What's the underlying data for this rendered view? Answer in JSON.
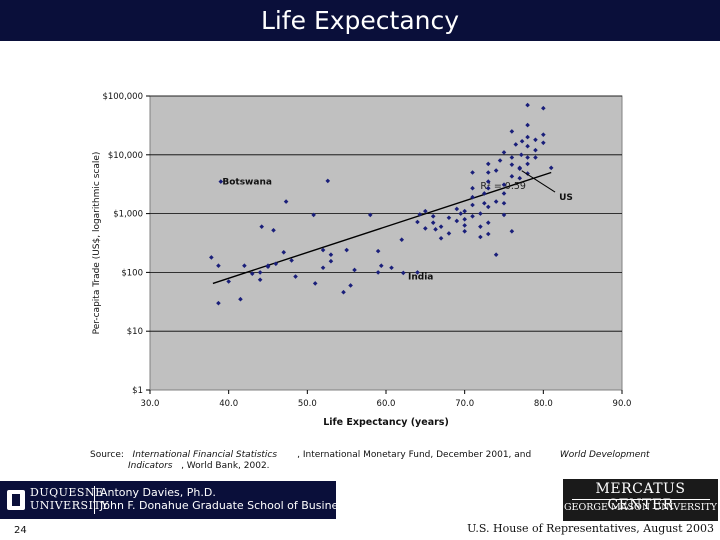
{
  "slide": {
    "title": "Life Expectancy",
    "page_number": "24",
    "footer_right": "U.S. House of Representatives, August 2003"
  },
  "source": {
    "prefix": "Source:",
    "part1": "International Financial Statistics",
    "part2": ", International Monetary Fund, December 2001, and",
    "part3": "World Development",
    "part4": "Indicators",
    "part5": ", World Bank, 2002."
  },
  "logos": {
    "duquesne_line1": "DUQUESNE",
    "duquesne_line2": "UNIVERSITY",
    "person_line1": "Antony Davies, Ph.D.",
    "person_line2": "John F. Donahue Graduate School of Business",
    "mercatus_line1": "MERCATUS CENTER",
    "mercatus_line2": "GEORGE MASON UNIVERSITY"
  },
  "chart_data": {
    "type": "scatter",
    "xlabel": "Life Expectancy (years)",
    "ylabel": "Per-capita Trade (US$, logarithmic scale)",
    "x_ticks": [
      "30.0",
      "40.0",
      "50.0",
      "60.0",
      "70.0",
      "80.0",
      "90.0"
    ],
    "y_ticks": [
      "$1",
      "$10",
      "$100",
      "$1,000",
      "$10,000",
      "$100,000"
    ],
    "xlim": [
      30,
      90
    ],
    "ylim": [
      1,
      100000
    ],
    "y_scale": "log",
    "grid": "horizontal",
    "plot_background": "#c0c0c0",
    "point_color": "#1a1f7a",
    "trendline": {
      "x": [
        38,
        81
      ],
      "y": [
        65,
        5000
      ],
      "label": "R² = 0.59",
      "label_x": 72,
      "label_y": 2600
    },
    "annotations": [
      {
        "text": "Botswana",
        "x": 39.2,
        "y": 3500
      },
      {
        "text": "US",
        "x": 77,
        "y": 5800,
        "label": "US",
        "label_x": 82,
        "label_y": 1700
      },
      {
        "text": "India",
        "x": 62.8,
        "y": 85
      }
    ],
    "points": [
      [
        37.8,
        180
      ],
      [
        38.7,
        130
      ],
      [
        40.0,
        70
      ],
      [
        42,
        130
      ],
      [
        43,
        95
      ],
      [
        44,
        100
      ],
      [
        45,
        130
      ],
      [
        47.3,
        1600
      ],
      [
        50.8,
        950
      ],
      [
        52.6,
        3600
      ],
      [
        39.0,
        3500
      ],
      [
        38.7,
        30
      ],
      [
        41.5,
        35
      ],
      [
        44.2,
        600
      ],
      [
        45.7,
        520
      ],
      [
        52,
        240
      ],
      [
        55,
        240
      ],
      [
        54.6,
        46
      ],
      [
        58,
        950
      ],
      [
        59,
        100
      ],
      [
        59,
        230
      ],
      [
        62,
        360
      ],
      [
        59.4,
        130
      ],
      [
        60.7,
        120
      ],
      [
        62.2,
        98
      ],
      [
        64,
        100
      ],
      [
        44,
        75
      ],
      [
        45,
        125
      ],
      [
        46,
        140
      ],
      [
        47,
        220
      ],
      [
        48,
        160
      ],
      [
        48.5,
        85
      ],
      [
        51,
        65
      ],
      [
        52,
        120
      ],
      [
        53,
        200
      ],
      [
        53,
        155
      ],
      [
        55.5,
        60
      ],
      [
        56,
        110
      ],
      [
        64,
        720
      ],
      [
        64.3,
        970
      ],
      [
        65,
        1100
      ],
      [
        65,
        560
      ],
      [
        66,
        900
      ],
      [
        66,
        700
      ],
      [
        66.3,
        540
      ],
      [
        67,
        600
      ],
      [
        67,
        380
      ],
      [
        68,
        460
      ],
      [
        68,
        850
      ],
      [
        69,
        1200
      ],
      [
        69,
        750
      ],
      [
        69.5,
        1000
      ],
      [
        70,
        1100
      ],
      [
        70,
        800
      ],
      [
        70,
        630
      ],
      [
        70,
        500
      ],
      [
        71,
        1900
      ],
      [
        71,
        1400
      ],
      [
        71,
        900
      ],
      [
        71,
        2700
      ],
      [
        71,
        5000
      ],
      [
        72,
        1000
      ],
      [
        72,
        600
      ],
      [
        72,
        400
      ],
      [
        72.5,
        1500
      ],
      [
        72.5,
        2200
      ],
      [
        73,
        2700
      ],
      [
        73,
        3500
      ],
      [
        73,
        5000
      ],
      [
        73,
        7000
      ],
      [
        73,
        1300
      ],
      [
        73,
        700
      ],
      [
        73,
        450
      ],
      [
        74,
        5400
      ],
      [
        74,
        1600
      ],
      [
        74,
        200
      ],
      [
        74.5,
        8000
      ],
      [
        75,
        3100
      ],
      [
        75,
        2200
      ],
      [
        75,
        1500
      ],
      [
        75,
        11000
      ],
      [
        75,
        950
      ],
      [
        76,
        4300
      ],
      [
        76,
        9000
      ],
      [
        76,
        6800
      ],
      [
        76,
        25000
      ],
      [
        76,
        500
      ],
      [
        76.5,
        15000
      ],
      [
        77,
        4000
      ],
      [
        77,
        6000
      ],
      [
        77.2,
        10000
      ],
      [
        77.3,
        17000
      ],
      [
        78,
        70000
      ],
      [
        78,
        32000
      ],
      [
        78,
        20000
      ],
      [
        78,
        14000
      ],
      [
        78,
        9000
      ],
      [
        78,
        7000
      ],
      [
        78,
        4800
      ],
      [
        79,
        18000
      ],
      [
        79,
        12000
      ],
      [
        79,
        9000
      ],
      [
        80,
        22000
      ],
      [
        80,
        16000
      ],
      [
        80,
        62000
      ],
      [
        81,
        6000
      ],
      [
        77,
        5800
      ]
    ]
  }
}
